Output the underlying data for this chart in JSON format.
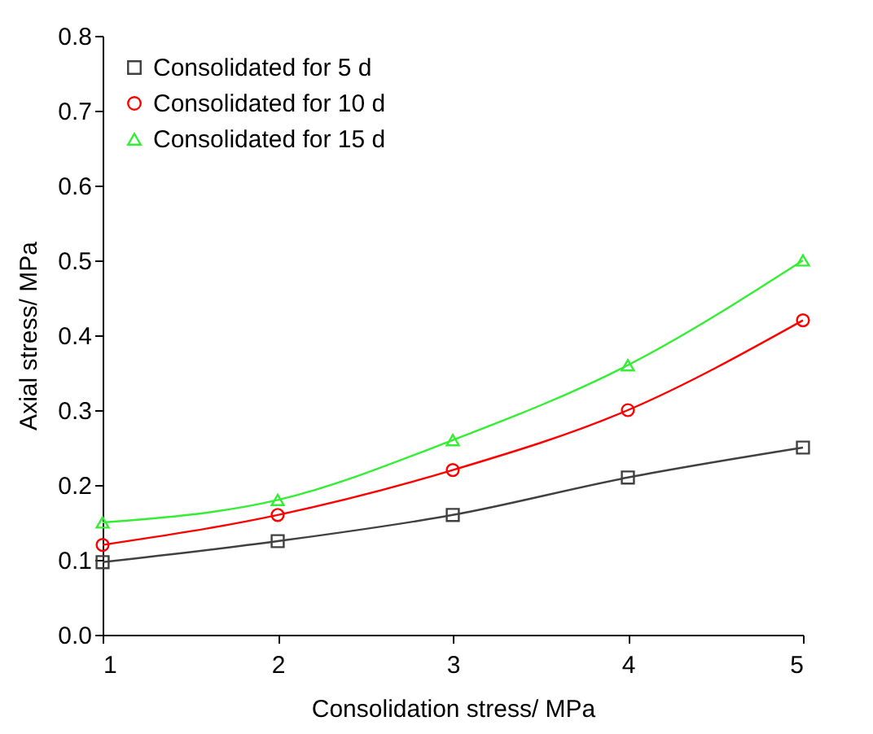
{
  "chart_data": {
    "type": "line",
    "xlabel": "Consolidation stress/ MPa",
    "ylabel": "Axial stress/ MPa",
    "x": [
      1,
      2,
      3,
      4,
      5
    ],
    "series": [
      {
        "name": "Consolidated for 5 d",
        "color": "#404040",
        "marker": "square",
        "values": [
          0.097,
          0.125,
          0.16,
          0.21,
          0.25
        ]
      },
      {
        "name": "Consolidated for 10 d",
        "color": "#ff0000",
        "marker": "circle",
        "values": [
          0.12,
          0.16,
          0.22,
          0.3,
          0.42
        ]
      },
      {
        "name": "Consolidated for 15 d",
        "color": "#33ee33",
        "marker": "triangle",
        "values": [
          0.15,
          0.18,
          0.26,
          0.36,
          0.5
        ]
      }
    ],
    "xlim": [
      1,
      5
    ],
    "xticks": [
      1,
      2,
      3,
      4,
      5
    ],
    "ylim": [
      0,
      0.8
    ],
    "yticks": [
      {
        "value": 0,
        "label": "0.0"
      },
      0.1,
      0.2,
      0.3,
      0.4,
      0.5,
      0.6,
      0.7,
      0.8
    ],
    "grid": false,
    "legend": "top left",
    "line_style": "solid"
  }
}
